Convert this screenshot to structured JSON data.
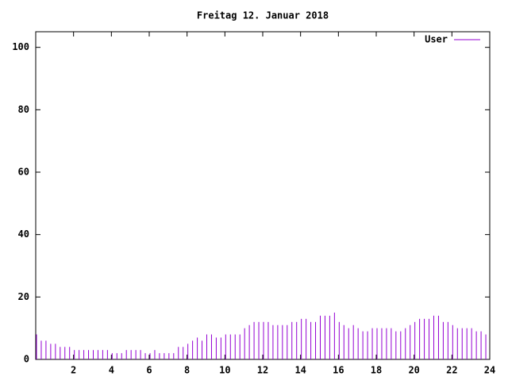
{
  "chart_data": {
    "type": "impulse",
    "title": "Freitag 12. Januar 2018",
    "x": [
      0,
      0.25,
      0.5,
      0.75,
      1,
      1.25,
      1.5,
      1.75,
      2,
      2.25,
      2.5,
      2.75,
      3,
      3.25,
      3.5,
      3.75,
      4,
      4.25,
      4.5,
      4.75,
      5,
      5.25,
      5.5,
      5.75,
      6,
      6.25,
      6.5,
      6.75,
      7,
      7.25,
      7.5,
      7.75,
      8,
      8.25,
      8.5,
      8.75,
      9,
      9.25,
      9.5,
      9.75,
      10,
      10.25,
      10.5,
      10.75,
      11,
      11.25,
      11.5,
      11.75,
      12,
      12.25,
      12.5,
      12.75,
      13,
      13.25,
      13.5,
      13.75,
      14,
      14.25,
      14.5,
      14.75,
      15,
      15.25,
      15.5,
      15.75,
      16,
      16.25,
      16.5,
      16.75,
      17,
      17.25,
      17.5,
      17.75,
      18,
      18.25,
      18.5,
      18.75,
      19,
      19.25,
      19.5,
      19.75,
      20,
      20.25,
      20.5,
      20.75,
      21,
      21.25,
      21.5,
      21.75,
      22,
      22.25,
      22.5,
      22.75,
      23,
      23.25,
      23.5,
      23.75
    ],
    "series": [
      {
        "name": "User",
        "color": "#9400d3",
        "values": [
          8,
          6,
          6,
          5,
          5,
          4,
          4,
          4,
          3,
          3,
          3,
          3,
          3,
          3,
          3,
          3,
          2,
          2,
          2,
          3,
          3,
          3,
          3,
          2,
          2,
          3,
          2,
          2,
          2,
          2,
          4,
          4,
          5,
          6,
          7,
          6,
          8,
          8,
          7,
          7,
          8,
          8,
          8,
          8,
          10,
          11,
          12,
          12,
          12,
          12,
          11,
          11,
          11,
          11,
          12,
          12,
          13,
          13,
          12,
          12,
          14,
          14,
          14,
          15,
          12,
          11,
          10,
          11,
          10,
          9,
          9,
          10,
          10,
          10,
          10,
          10,
          9,
          9,
          10,
          11,
          12,
          13,
          13,
          13,
          14,
          14,
          12,
          12,
          11,
          10,
          10,
          10,
          10,
          9,
          9,
          8
        ]
      }
    ],
    "xlim": [
      0,
      24
    ],
    "xticks": [
      2,
      4,
      6,
      8,
      10,
      12,
      14,
      16,
      18,
      20,
      22,
      24
    ],
    "ylim": [
      0,
      105
    ],
    "yticks": [
      0,
      20,
      40,
      60,
      80,
      100
    ],
    "legend": "top-right"
  }
}
